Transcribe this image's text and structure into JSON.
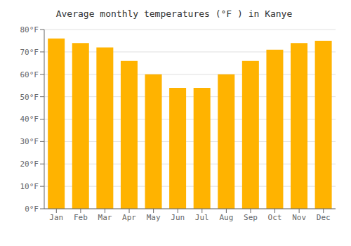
{
  "chart_data": {
    "type": "bar",
    "title": "Average monthly temperatures (°F ) in Kanye",
    "categories": [
      "Jan",
      "Feb",
      "Mar",
      "Apr",
      "May",
      "Jun",
      "Jul",
      "Aug",
      "Sep",
      "Oct",
      "Nov",
      "Dec"
    ],
    "values": [
      76,
      74,
      72,
      66,
      60,
      54,
      54,
      60,
      66,
      71,
      74,
      75
    ],
    "color": "#FFB300",
    "ylim": [
      0,
      80
    ],
    "yticks": [
      {
        "value": 0,
        "label": "0°F"
      },
      {
        "value": 10,
        "label": "10°F"
      },
      {
        "value": 20,
        "label": "20°F"
      },
      {
        "value": 30,
        "label": "30°F"
      },
      {
        "value": 40,
        "label": "40°F"
      },
      {
        "value": 50,
        "label": "50°F"
      },
      {
        "value": 60,
        "label": "60°F"
      },
      {
        "value": 70,
        "label": "70°F"
      },
      {
        "value": 80,
        "label": "80°F"
      }
    ],
    "grid": true
  }
}
